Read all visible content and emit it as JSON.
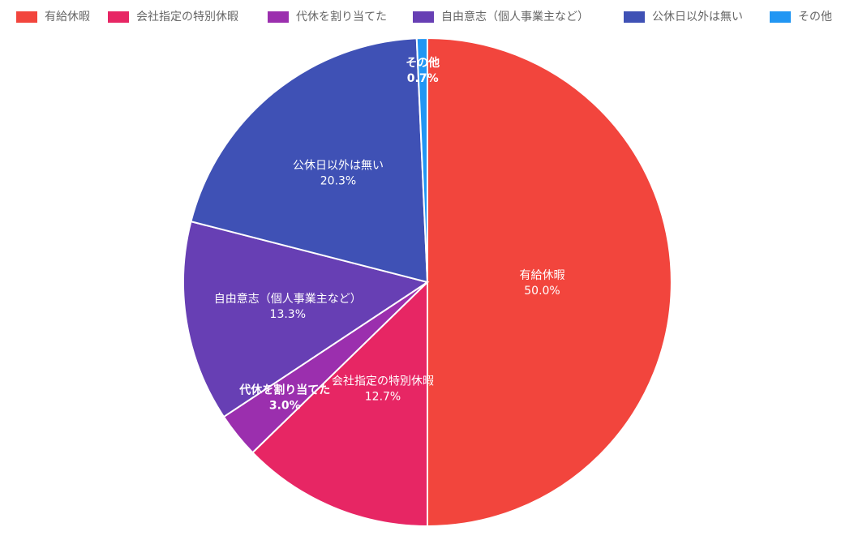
{
  "chart_data": {
    "type": "pie",
    "title": "",
    "legend_position": "top",
    "categories": [
      "有給休暇",
      "会社指定の特別休暇",
      "代休を割り当てた",
      "自由意志（個人事業主など）",
      "公休日以外は無い",
      "その他"
    ],
    "values": [
      50.0,
      12.7,
      3.0,
      13.3,
      20.3,
      0.7
    ],
    "value_labels": [
      "50.0%",
      "12.7%",
      "3.0%",
      "13.3%",
      "20.3%",
      "0.7%"
    ],
    "colors": [
      "#f2453d",
      "#e72664",
      "#9b2fae",
      "#673fb4",
      "#3f51b5",
      "#2196f3"
    ]
  }
}
